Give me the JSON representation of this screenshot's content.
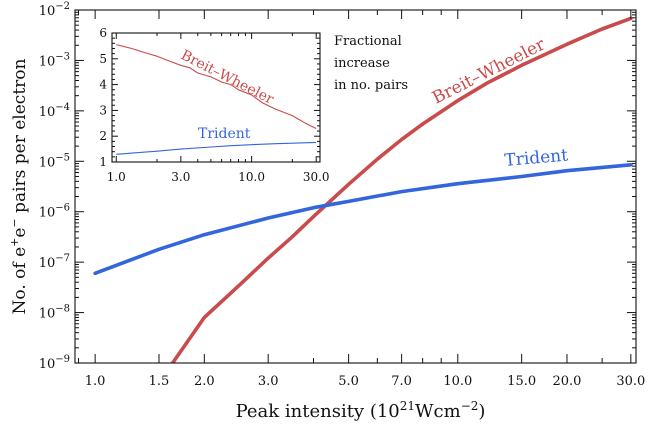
{
  "chart_data": [
    {
      "type": "line",
      "title": "",
      "xlabel": "Peak intensity (10",
      "xlabel_sup": "21",
      "xlabel_unit": "Wcm",
      "xlabel_unit_sup": "−2",
      "xlabel_close": ")",
      "ylabel_parts": {
        "prefix": "No. of e",
        "sup1": "+",
        "mid": "e",
        "sup2": "−",
        "suffix": " pairs per electron"
      },
      "xscale": "log",
      "yscale": "log",
      "xlim": [
        0.88,
        31
      ],
      "ylim": [
        1e-09,
        0.01
      ],
      "xticks": [
        {
          "value": 1.0,
          "label": "1.0"
        },
        {
          "value": 1.5,
          "label": "1.5"
        },
        {
          "value": 2.0,
          "label": "2.0"
        },
        {
          "value": 3.0,
          "label": "3.0"
        },
        {
          "value": 5.0,
          "label": "5.0"
        },
        {
          "value": 7.0,
          "label": "7.0"
        },
        {
          "value": 10.0,
          "label": "10.0"
        },
        {
          "value": 15.0,
          "label": "15.0"
        },
        {
          "value": 20.0,
          "label": "20.0"
        },
        {
          "value": 30.0,
          "label": "30.0"
        }
      ],
      "yticks": [
        {
          "exp": -9,
          "base": "10",
          "sup": "−9"
        },
        {
          "exp": -8,
          "base": "10",
          "sup": "−8"
        },
        {
          "exp": -7,
          "base": "10",
          "sup": "−7"
        },
        {
          "exp": -6,
          "base": "10",
          "sup": "−6"
        },
        {
          "exp": -5,
          "base": "10",
          "sup": "−5"
        },
        {
          "exp": -4,
          "base": "10",
          "sup": "−4"
        },
        {
          "exp": -3,
          "base": "10",
          "sup": "−3"
        },
        {
          "exp": -2,
          "base": "10",
          "sup": "−2"
        }
      ],
      "grid": false,
      "series": [
        {
          "name": "Breit–Wheeler",
          "color": "#c94b4b",
          "x": [
            1.6,
            2.0,
            2.5,
            3.0,
            3.5,
            4.0,
            5.0,
            6.0,
            7.0,
            8.0,
            10.0,
            12.0,
            15.0,
            20.0,
            25.0,
            30.0
          ],
          "y": [
            8e-10,
            8e-09,
            3.5e-08,
            1.2e-07,
            3.2e-07,
            8e-07,
            3.5e-06,
            1.1e-05,
            2.7e-05,
            5.5e-05,
            0.00016,
            0.00035,
            0.0008,
            0.0021,
            0.0042,
            0.0068
          ]
        },
        {
          "name": "Trident",
          "color": "#3366dd",
          "x": [
            1.0,
            1.5,
            2.0,
            3.0,
            4.0,
            5.0,
            7.0,
            10.0,
            15.0,
            20.0,
            30.0
          ],
          "y": [
            6e-08,
            1.8e-07,
            3.5e-07,
            7.5e-07,
            1.2e-06,
            1.6e-06,
            2.5e-06,
            3.6e-06,
            5e-06,
            6.5e-06,
            8.5e-06
          ]
        }
      ]
    },
    {
      "type": "line",
      "title": "",
      "annotation": [
        "Fractional",
        "increase",
        "in no. pairs"
      ],
      "xscale": "log",
      "yscale": "linear",
      "xlim": [
        0.93,
        32
      ],
      "ylim": [
        1,
        6
      ],
      "xticks": [
        {
          "value": 1.0,
          "label": "1.0"
        },
        {
          "value": 3.0,
          "label": "3.0"
        },
        {
          "value": 10.0,
          "label": "10.0"
        },
        {
          "value": 30.0,
          "label": "30.0"
        }
      ],
      "yticks": [
        1,
        2,
        3,
        4,
        5,
        6
      ],
      "grid": false,
      "series": [
        {
          "name": "Breit–Wheeler",
          "color": "#c94b4b",
          "x": [
            1.0,
            1.3,
            1.6,
            2.0,
            2.5,
            3.0,
            3.5,
            4.0,
            5.0,
            6.0,
            7.0,
            8.0,
            10.0,
            12.0,
            15.0,
            20.0,
            25.0,
            30.0
          ],
          "y": [
            5.55,
            5.4,
            5.25,
            5.1,
            4.9,
            4.75,
            4.65,
            4.45,
            4.3,
            4.1,
            4.0,
            3.8,
            3.6,
            3.3,
            3.05,
            2.8,
            2.5,
            2.3
          ]
        },
        {
          "name": "Trident",
          "color": "#3366dd",
          "x": [
            1.0,
            2.0,
            3.0,
            5.0,
            7.0,
            10.0,
            15.0,
            20.0,
            30.0
          ],
          "y": [
            1.3,
            1.42,
            1.5,
            1.58,
            1.63,
            1.67,
            1.71,
            1.73,
            1.76
          ]
        }
      ]
    }
  ]
}
